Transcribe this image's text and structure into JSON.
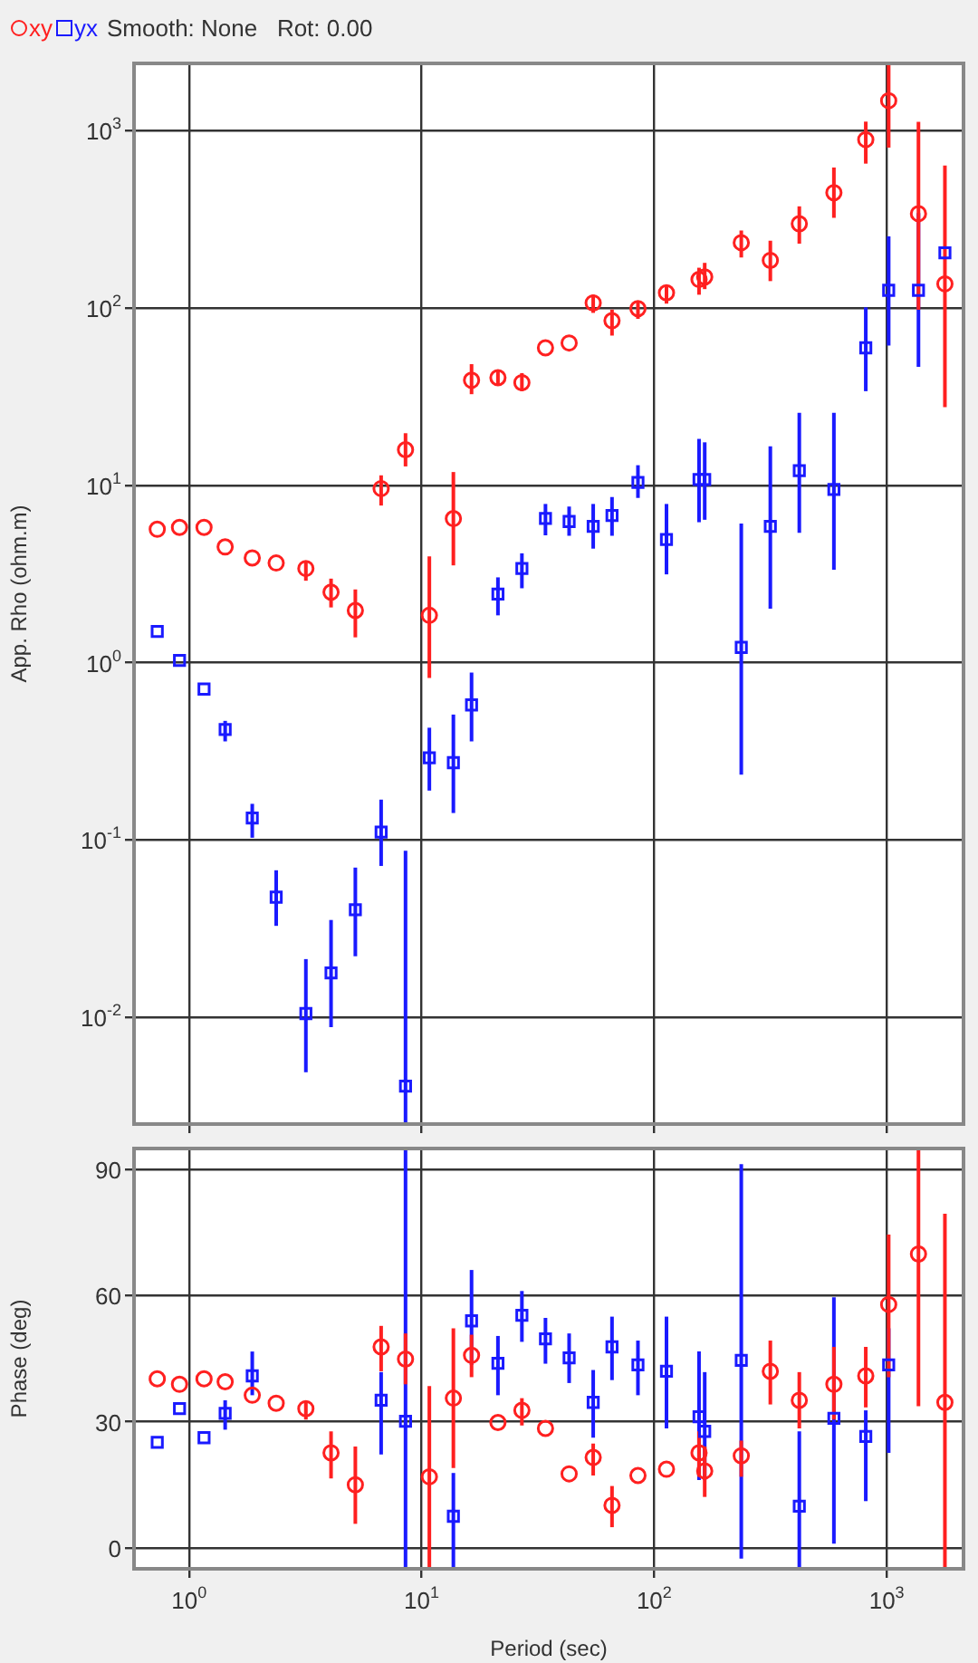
{
  "chart_data": [
    {
      "type": "scatter",
      "ylabel": "App. Rho (ohm.m)",
      "annotations": [
        "Smooth: None   Rot: 0.00"
      ],
      "legend": "top left",
      "log": "xy",
      "grid": true,
      "tick_labels": "y",
      "x": [
        0.73,
        0.91,
        1.16,
        1.43,
        1.87,
        2.37,
        3.18,
        4.08,
        5.19,
        6.7,
        8.53,
        10.8,
        13.7,
        16.4,
        21.3,
        27,
        34.1,
        43.1,
        54.7,
        65.9,
        85.2,
        113,
        156,
        165,
        237,
        316,
        421,
        593,
        813,
        1020,
        1370,
        1780
      ],
      "xlim": [
        0.58,
        2140
      ],
      "xticks": [
        {
          "value": 1,
          "label": null
        },
        {
          "value": 10,
          "label": null
        },
        {
          "value": 100,
          "label": null
        },
        {
          "value": 1000,
          "label": null
        }
      ],
      "ylim": [
        0.0025,
        2400
      ],
      "yticks": [
        {
          "value": 0.01,
          "label": "10$^{-2}$"
        },
        {
          "value": 0.1,
          "label": "10$^{-1}$"
        },
        {
          "value": 1,
          "label": "10$^{0}$"
        },
        {
          "value": 10,
          "label": "10$^{1}$"
        },
        {
          "value": 100,
          "label": "10$^{2}$"
        },
        {
          "value": 1000,
          "label": "10$^{3}$"
        }
      ],
      "series": [
        {
          "name": "xy",
          "color": "#ff2020",
          "marker": "circle",
          "values": [
            5.66,
            5.8,
            5.8,
            4.5,
            3.9,
            3.65,
            3.4,
            2.5,
            1.97,
            9.6,
            15.9,
            1.85,
            6.5,
            39.2,
            40.5,
            38,
            59.7,
            63.6,
            107,
            84.9,
            99.3,
            122,
            145,
            150,
            234,
            186,
            299,
            448,
            892,
            1479,
            341,
            137
          ],
          "errors": [
            null,
            null,
            null,
            null,
            null,
            null,
            [
              2.9,
              3.7
            ],
            [
              2.05,
              2.98
            ],
            [
              1.39,
              2.59
            ],
            [
              7.7,
              11.4
            ],
            [
              12.8,
              19.7
            ],
            [
              0.82,
              3.98
            ],
            [
              3.54,
              11.9
            ],
            [
              32.7,
              48.3
            ],
            [
              37,
              44.9
            ],
            [
              34,
              43
            ],
            null,
            null,
            [
              94,
              119
            ],
            [
              70,
              98
            ],
            [
              87,
              110
            ],
            [
              106,
              134
            ],
            [
              119,
              169
            ],
            [
              128,
              180
            ],
            [
              193,
              274
            ],
            [
              142,
              240
            ],
            [
              231,
              375
            ],
            [
              323,
              621
            ],
            [
              653,
              1127
            ],
            [
              804,
              2400
            ],
            [
              98,
              1125
            ],
            [
              27.6,
              637
            ]
          ]
        },
        {
          "name": "yx",
          "color": "#1a1aff",
          "marker": "square",
          "values": [
            1.5,
            1.03,
            0.71,
            0.42,
            0.133,
            0.0476,
            0.0105,
            0.0178,
            0.0404,
            0.111,
            0.00409,
            0.291,
            0.273,
            0.578,
            2.44,
            3.4,
            6.51,
            6.26,
            5.88,
            6.76,
            10.4,
            4.95,
            10.8,
            10.8,
            1.22,
            5.88,
            12.1,
            9.48,
            59.7,
            126,
            126,
            205
          ],
          "errors": [
            null,
            null,
            null,
            [
              0.36,
              0.47
            ],
            [
              0.103,
              0.16
            ],
            [
              0.0328,
              0.0675
            ],
            [
              0.0049,
              0.0213
            ],
            [
              0.0088,
              0.0354
            ],
            [
              0.0221,
              0.0699
            ],
            [
              0.0714,
              0.169
            ],
            [
              0.0025,
              0.0869
            ],
            [
              0.19,
              0.43
            ],
            [
              0.142,
              0.51
            ],
            [
              0.36,
              0.88
            ],
            [
              1.85,
              3.03
            ],
            [
              2.63,
              4.14
            ],
            [
              5.23,
              7.86
            ],
            [
              5.2,
              7.6
            ],
            [
              4.4,
              7.86
            ],
            [
              5.2,
              8.6
            ],
            [
              8.5,
              13
            ],
            [
              3.15,
              7.86
            ],
            [
              6.2,
              18.3
            ],
            [
              6.4,
              17.5
            ],
            [
              0.234,
              6.1
            ],
            [
              2.02,
              16.6
            ],
            [
              5.4,
              25.7
            ],
            [
              3.35,
              25.7
            ],
            [
              34,
              101
            ],
            [
              61.5,
              254
            ],
            [
              46.6,
              344
            ],
            null
          ]
        }
      ]
    },
    {
      "type": "scatter",
      "xlabel": "Period (sec)",
      "ylabel": "Phase (deg)",
      "log": "x",
      "grid": true,
      "x": [
        0.73,
        0.91,
        1.16,
        1.43,
        1.87,
        2.37,
        3.18,
        4.08,
        5.19,
        6.7,
        8.53,
        10.8,
        13.7,
        16.4,
        21.3,
        27,
        34.1,
        43.1,
        54.7,
        65.9,
        85.2,
        113,
        156,
        165,
        237,
        316,
        421,
        593,
        813,
        1020,
        1370,
        1780
      ],
      "xlim": [
        0.58,
        2140
      ],
      "xticks": [
        {
          "value": 1,
          "label": "10$^{0}$"
        },
        {
          "value": 10,
          "label": "10$^{1}$"
        },
        {
          "value": 100,
          "label": "10$^{2}$"
        },
        {
          "value": 1000,
          "label": "10$^{3}$"
        }
      ],
      "ylim": [
        -5,
        95
      ],
      "yticks": [
        0,
        30,
        60,
        90
      ],
      "series": [
        {
          "color": "#ff2020",
          "marker": "circle",
          "values": [
            40.2,
            38.9,
            40.2,
            39.5,
            36.3,
            34.4,
            33.1,
            22.6,
            15.0,
            47.8,
            44.9,
            16.9,
            35.6,
            45.8,
            29.8,
            32.7,
            28.4,
            17.6,
            21.5,
            10.1,
            17.2,
            18.7,
            22.6,
            18.3,
            21.9,
            42.0,
            35.1,
            38.9,
            40.9,
            57.9,
            69.9,
            34.6
          ],
          "errors": [
            null,
            null,
            null,
            null,
            null,
            null,
            [
              30.5,
              34.9
            ],
            [
              16.5,
              27.7
            ],
            [
              5.7,
              24.1
            ],
            [
              42,
              52.8
            ],
            [
              38.9,
              51
            ],
            [
              -5,
              38.5
            ],
            [
              19,
              52.2
            ],
            [
              40.6,
              50.7
            ],
            null,
            [
              29.1,
              35.6
            ],
            null,
            null,
            [
              17.2,
              24.8
            ],
            [
              4.9,
              14.7
            ],
            null,
            null,
            [
              16.9,
              27.7
            ],
            [
              12.1,
              24.1
            ],
            [
              16.9,
              25.5
            ],
            [
              34.1,
              49.3
            ],
            [
              28.4,
              41.8
            ],
            [
              30.5,
              47.8
            ],
            [
              33.4,
              47.8
            ],
            [
              40.6,
              74.5
            ],
            [
              33.7,
              95
            ],
            [
              -5,
              79.5
            ]
          ]
        },
        {
          "color": "#1a1aff",
          "marker": "square",
          "values": [
            25.1,
            33.1,
            26.2,
            32.0,
            40.9,
            null,
            null,
            null,
            null,
            35.1,
            30.1,
            null,
            7.5,
            54.0,
            43.9,
            55.3,
            49.7,
            45.2,
            34.6,
            47.8,
            43.5,
            42.0,
            31.2,
            27.7,
            44.6,
            null,
            9.9,
            30.8,
            26.5,
            43.5,
            null,
            null
          ],
          "errors": [
            null,
            null,
            null,
            [
              28.1,
              35.1
            ],
            [
              36.3,
              46.7
            ],
            null,
            null,
            null,
            null,
            [
              22.2,
              41.8
            ],
            [
              -5,
              95
            ],
            null,
            [
              -5,
              17.8
            ],
            [
              43.5,
              66.1
            ],
            [
              36.3,
              50.4
            ],
            [
              49,
              61.1
            ],
            [
              43.8,
              54.7
            ],
            [
              39.2,
              51
            ],
            [
              26.2,
              42.3
            ],
            [
              39.9,
              55
            ],
            [
              36.3,
              49.3
            ],
            [
              28.4,
              55
            ],
            [
              16.1,
              46.7
            ],
            [
              16.1,
              41.8
            ],
            [
              -2.6,
              91.3
            ],
            null,
            [
              -4.8,
              27.7
            ],
            [
              1,
              59.6
            ],
            [
              11.1,
              32.7
            ],
            [
              22.6,
              52.2
            ],
            null,
            null
          ]
        }
      ]
    }
  ]
}
